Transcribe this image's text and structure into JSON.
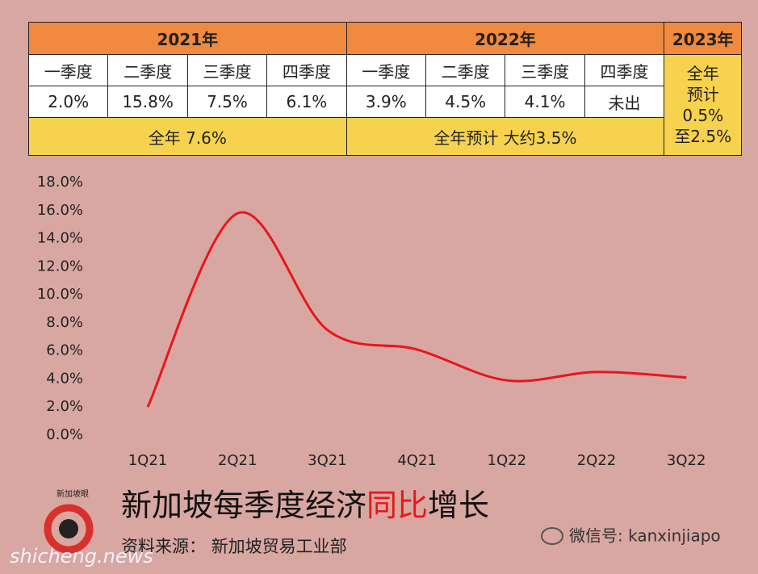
{
  "table": {
    "years": [
      "2021年",
      "2022年",
      "2023年"
    ],
    "quarters": [
      "一季度",
      "二季度",
      "三季度",
      "四季度",
      "一季度",
      "二季度",
      "三季度",
      "四季度"
    ],
    "growth": [
      "2.0%",
      "15.8%",
      "7.5%",
      "6.1%",
      "3.9%",
      "4.5%",
      "4.1%",
      "未出"
    ],
    "annual": [
      "全年 7.6%",
      "全年预计 大约3.5%"
    ],
    "forecast_2023": [
      "全年",
      "预计",
      "0.5%",
      "至2.5%"
    ]
  },
  "chart_data": {
    "type": "line",
    "categories": [
      "1Q21",
      "2Q21",
      "3Q21",
      "4Q21",
      "1Q22",
      "2Q22",
      "3Q22"
    ],
    "series": [
      {
        "name": "同比增长",
        "color": "#e8161b",
        "values": [
          2.0,
          15.8,
          7.5,
          6.1,
          3.9,
          4.5,
          4.1
        ]
      }
    ],
    "ylim": [
      0,
      18
    ],
    "yticks": [
      {
        "value": 0,
        "label": "0.0%"
      },
      {
        "value": 2,
        "label": "2.0%"
      },
      {
        "value": 4,
        "label": "4.0%"
      },
      {
        "value": 6,
        "label": "6.0%"
      },
      {
        "value": 8,
        "label": "8.0%"
      },
      {
        "value": 10,
        "label": "10.0%"
      },
      {
        "value": 12,
        "label": "12.0%"
      },
      {
        "value": 14,
        "label": "14.0%"
      },
      {
        "value": 16,
        "label": "16.0%"
      },
      {
        "value": 18,
        "label": "18.0%"
      }
    ],
    "grid": false,
    "title": [
      {
        "text": "新加坡每季度经济"
      },
      {
        "text": "同比",
        "color": "#e8161b"
      },
      {
        "text": "增长"
      }
    ],
    "source": "资料来源： 新加坡贸易工业部"
  },
  "branding": {
    "logo": "新加坡眼",
    "site": "shicheng.news",
    "wechat": "微信号: kanxinjiapo"
  }
}
